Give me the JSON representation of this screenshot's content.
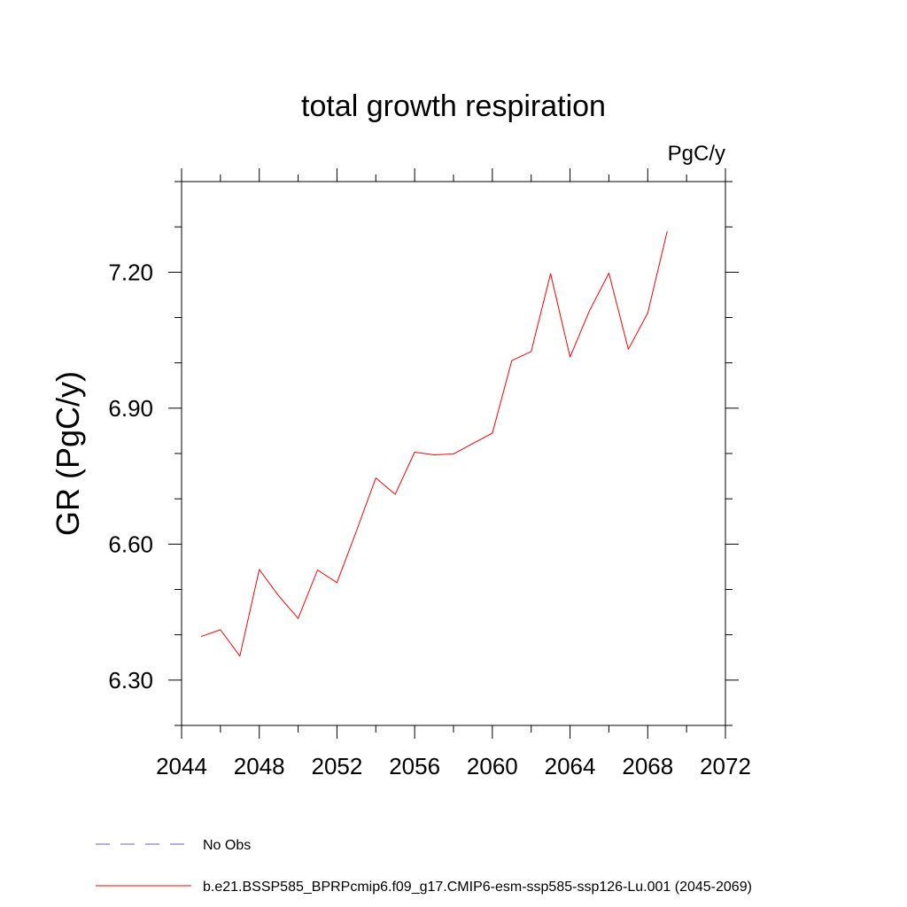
{
  "chart_data": {
    "type": "line",
    "title": "total growth respiration",
    "units_label": "PgC/y",
    "ylabel": "GR  (PgC/y)",
    "xlabel": "",
    "xlim": [
      2044,
      2072
    ],
    "ylim": [
      6.2,
      7.4
    ],
    "x_ticks": [
      2044,
      2048,
      2052,
      2056,
      2060,
      2064,
      2068,
      2072
    ],
    "x_tick_labels": [
      "2044",
      "2048",
      "2052",
      "2056",
      "2060",
      "2064",
      "2068",
      "2072"
    ],
    "x_minor_step": 2,
    "y_ticks": [
      6.3,
      6.6,
      6.9,
      7.2
    ],
    "y_tick_labels": [
      "6.30",
      "6.60",
      "6.90",
      "7.20"
    ],
    "y_minor_step": 0.1,
    "grid": false,
    "legend_position": "bottom",
    "legend": [
      {
        "label": "No Obs",
        "color": "#6a5acd",
        "style": "dashed"
      },
      {
        "label": "b.e21.BSSP585_BPRPcmip6.f09_g17.CMIP6-esm-ssp585-ssp126-Lu.001 (2045-2069)",
        "color": "#ff0000",
        "style": "solid"
      }
    ],
    "series": [
      {
        "name": "b.e21.BSSP585_BPRPcmip6.f09_g17.CMIP6-esm-ssp585-ssp126-Lu.001 (2045-2069)",
        "color": "#ff0000",
        "x": [
          2045,
          2046,
          2047,
          2048,
          2049,
          2050,
          2051,
          2052,
          2053,
          2054,
          2055,
          2056,
          2057,
          2058,
          2059,
          2060,
          2061,
          2062,
          2063,
          2064,
          2065,
          2066,
          2067,
          2068,
          2069
        ],
        "y": [
          6.396,
          6.411,
          6.353,
          6.544,
          6.486,
          6.436,
          6.543,
          6.515,
          6.629,
          6.746,
          6.71,
          6.803,
          6.797,
          6.799,
          6.822,
          6.845,
          7.005,
          7.025,
          7.197,
          7.013,
          7.115,
          7.198,
          7.03,
          7.11,
          7.29
        ]
      }
    ]
  }
}
